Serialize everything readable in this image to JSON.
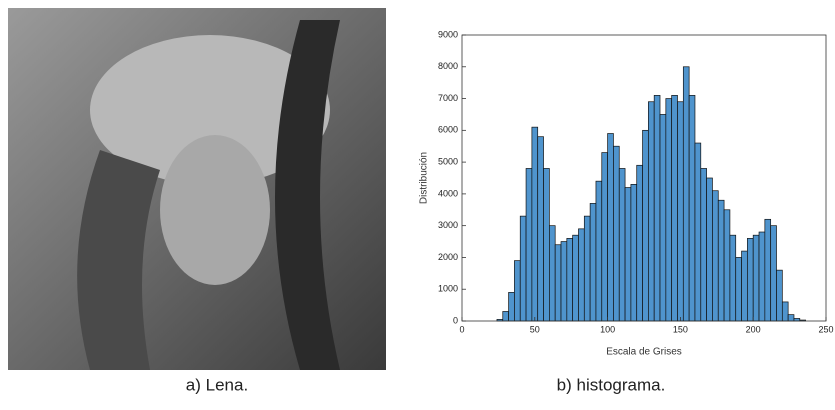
{
  "captions": [
    "a) Lena.",
    "b) histograma."
  ],
  "chart_data": {
    "type": "histogram",
    "xlabel": "Escala de Grises",
    "ylabel": "Distribución",
    "bins": [
      24,
      28,
      32,
      36,
      40,
      44,
      48,
      52,
      56,
      60,
      64,
      68,
      72,
      76,
      80,
      84,
      88,
      92,
      96,
      100,
      104,
      108,
      112,
      116,
      120,
      124,
      128,
      132,
      136,
      140,
      144,
      148,
      152,
      156,
      160,
      164,
      168,
      172,
      176,
      180,
      184,
      188,
      192,
      196,
      200,
      204,
      208,
      212,
      216,
      220,
      224,
      228,
      232,
      236
    ],
    "values": [
      50,
      300,
      900,
      1900,
      3300,
      4800,
      6100,
      5800,
      4800,
      3000,
      2400,
      2500,
      2600,
      2700,
      2900,
      3300,
      3700,
      4400,
      5300,
      5900,
      5500,
      4800,
      4200,
      4300,
      4900,
      6000,
      6900,
      7100,
      6500,
      7000,
      7100,
      6900,
      8000,
      7100,
      5600,
      4800,
      4500,
      4100,
      3800,
      3500,
      2700,
      2000,
      2200,
      2600,
      2700,
      2800,
      3200,
      3000,
      1600,
      600,
      200,
      80,
      30
    ],
    "color": "#4f94cd",
    "xlim": [
      0,
      250
    ],
    "xticks": [
      0,
      50,
      100,
      150,
      200,
      250
    ],
    "ylim": [
      0,
      9000
    ],
    "yticks": [
      0,
      1000,
      2000,
      3000,
      4000,
      5000,
      6000,
      7000,
      8000,
      9000
    ],
    "grid": false
  }
}
